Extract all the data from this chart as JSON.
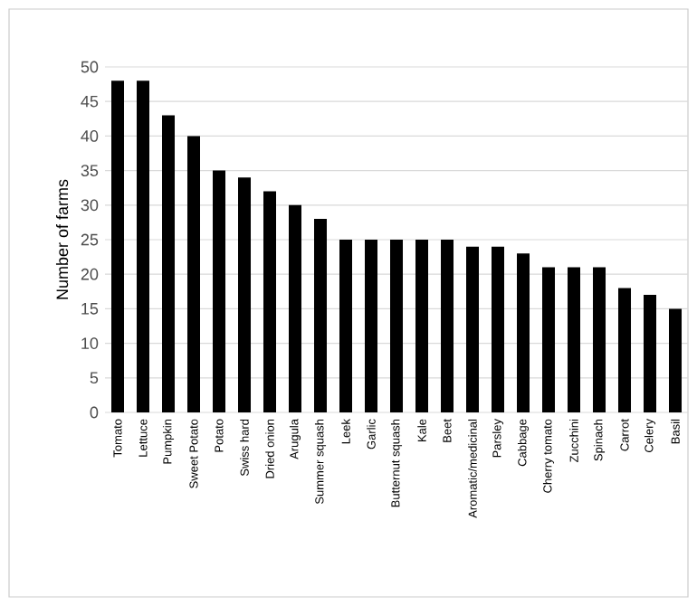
{
  "chart_data": {
    "type": "bar",
    "ylabel": "Number of farms",
    "categories": [
      "Tomato",
      "Lettuce",
      "Pumpkin",
      "Sweet Potato",
      "Potato",
      "Swiss hard",
      "Dried onion",
      "Arugula",
      "Summer squash",
      "Leek",
      "Garlic",
      "Butternut squash",
      "Kale",
      "Beet",
      "Aromatic/medicinal",
      "Parsley",
      "Cabbage",
      "Cherry tomato",
      "Zucchini",
      "Spinach",
      "Carrot",
      "Celery",
      "Basil"
    ],
    "values": [
      48,
      48,
      43,
      40,
      35,
      34,
      32,
      30,
      28,
      25,
      25,
      25,
      25,
      25,
      24,
      24,
      23,
      21,
      21,
      21,
      18,
      17,
      15
    ],
    "color": "#000000",
    "ylim": [
      0,
      50
    ],
    "yticks": [
      0,
      5,
      10,
      15,
      20,
      25,
      30,
      35,
      40,
      45,
      50
    ],
    "grid": "y"
  }
}
